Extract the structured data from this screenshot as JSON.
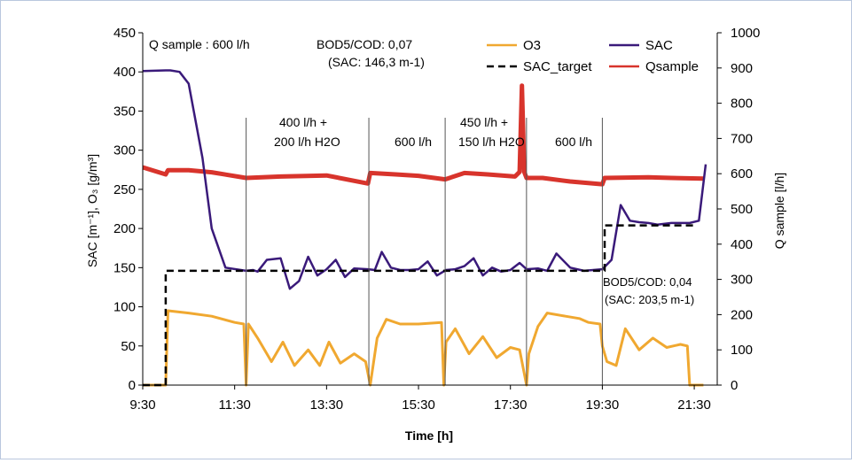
{
  "chart_data": {
    "type": "line",
    "xlabel": "Time [h]",
    "ylabel_left": "SAC [m⁻¹], O₃ [g/m³]",
    "ylabel_right": "Q sample [l/h]",
    "x_ticks": [
      "9:30",
      "11:30",
      "13:30",
      "15:30",
      "17:30",
      "19:30",
      "21:30"
    ],
    "xlim_hours": [
      9.5,
      22.0
    ],
    "ylim_left": [
      0,
      450
    ],
    "yticks_left": [
      0,
      50,
      100,
      150,
      200,
      250,
      300,
      350,
      400,
      450
    ],
    "ylim_right": [
      0,
      1000
    ],
    "yticks_right": [
      0,
      100,
      200,
      300,
      400,
      500,
      600,
      700,
      800,
      900,
      1000
    ],
    "grid": false,
    "legend_position": "top-right",
    "legend": [
      {
        "name": "O3",
        "color": "#f0a830",
        "dash": "solid"
      },
      {
        "name": "SAC",
        "color": "#3a1a7a",
        "dash": "solid"
      },
      {
        "name": "SAC_target",
        "color": "#000000",
        "dash": "dashed"
      },
      {
        "name": "Qsample",
        "color": "#d8342c",
        "dash": "solid"
      }
    ],
    "phase_boundaries_hours": [
      11.75,
      14.42,
      16.08,
      17.85,
      19.5
    ],
    "annotations": {
      "q_sample": "Q sample : 600 l/h",
      "bod_cod_1": "BOD5/COD: 0,07",
      "sac_1": "(SAC: 146,3 m-1)",
      "phase_2a": "400 l/h   +",
      "phase_2b": "200 l/h H2O",
      "phase_3": "600 l/h",
      "phase_4a": "450 l/h   +",
      "phase_4b": "150 l/h H2O",
      "phase_5": "600 l/h",
      "bod_cod_2": "BOD5/COD: 0,04",
      "sac_2": "(SAC: 203,5 m-1)"
    },
    "series": [
      {
        "name": "SAC",
        "axis": "left",
        "x": [
          9.5,
          10.0,
          10.1,
          10.3,
          10.5,
          10.8,
          11.0,
          11.3,
          11.75,
          11.9,
          12.0,
          12.2,
          12.5,
          12.7,
          12.9,
          13.1,
          13.3,
          13.5,
          13.7,
          13.9,
          14.1,
          14.4,
          14.55,
          14.7,
          14.9,
          15.1,
          15.3,
          15.5,
          15.7,
          15.9,
          16.1,
          16.3,
          16.5,
          16.7,
          16.9,
          17.1,
          17.3,
          17.5,
          17.7,
          17.85,
          18.1,
          18.3,
          18.5,
          18.8,
          19.1,
          19.5,
          19.7,
          19.9,
          20.1,
          20.3,
          20.5,
          20.7,
          21.0,
          21.2,
          21.4,
          21.6,
          21.75
        ],
        "y": [
          401,
          402,
          402,
          400,
          385,
          290,
          200,
          150,
          146,
          147,
          145,
          160,
          162,
          123,
          133,
          164,
          140,
          148,
          160,
          138,
          149,
          148,
          147,
          170,
          150,
          147,
          147,
          148,
          158,
          140,
          147,
          148,
          152,
          162,
          140,
          150,
          145,
          147,
          156,
          148,
          149,
          146,
          168,
          150,
          146,
          148,
          160,
          230,
          210,
          208,
          207,
          205,
          207,
          207,
          207,
          210,
          282
        ]
      },
      {
        "name": "SAC_target",
        "axis": "left",
        "x": [
          9.5,
          10.0,
          10.0,
          19.55,
          19.55,
          21.5
        ],
        "y": [
          0,
          0,
          146,
          146,
          204,
          204
        ]
      },
      {
        "name": "O3",
        "axis": "left",
        "x": [
          9.5,
          10.0,
          10.05,
          10.5,
          11.0,
          11.5,
          11.7,
          11.75,
          11.8,
          12.0,
          12.3,
          12.55,
          12.8,
          13.1,
          13.35,
          13.55,
          13.8,
          14.1,
          14.35,
          14.45,
          14.6,
          14.8,
          15.1,
          15.5,
          16.0,
          16.05,
          16.1,
          16.3,
          16.6,
          16.9,
          17.2,
          17.5,
          17.7,
          17.85,
          17.9,
          18.1,
          18.3,
          18.7,
          19.0,
          19.2,
          19.45,
          19.5,
          19.6,
          19.8,
          20.0,
          20.3,
          20.6,
          20.9,
          21.2,
          21.35,
          21.4,
          21.7
        ],
        "y": [
          0,
          0,
          95,
          92,
          88,
          80,
          78,
          0,
          78,
          60,
          30,
          55,
          25,
          45,
          25,
          55,
          28,
          40,
          30,
          0,
          60,
          84,
          78,
          78,
          80,
          0,
          55,
          72,
          40,
          62,
          35,
          48,
          45,
          0,
          40,
          75,
          92,
          88,
          85,
          80,
          78,
          50,
          30,
          25,
          72,
          45,
          60,
          48,
          52,
          50,
          0,
          0
        ]
      },
      {
        "name": "Qsample",
        "axis": "right",
        "x": [
          9.5,
          10.0,
          10.05,
          10.5,
          11.0,
          11.75,
          12.5,
          13.5,
          14.4,
          14.45,
          15.0,
          15.5,
          16.08,
          16.5,
          17.0,
          17.6,
          17.7,
          17.75,
          17.8,
          17.85,
          18.2,
          18.8,
          19.5,
          19.55,
          20.5,
          21.0,
          21.7
        ],
        "y": [
          618,
          598,
          610,
          610,
          604,
          588,
          592,
          595,
          572,
          602,
          598,
          594,
          584,
          602,
          598,
          592,
          605,
          850,
          605,
          588,
          588,
          578,
          570,
          588,
          590,
          588,
          586
        ]
      }
    ]
  }
}
